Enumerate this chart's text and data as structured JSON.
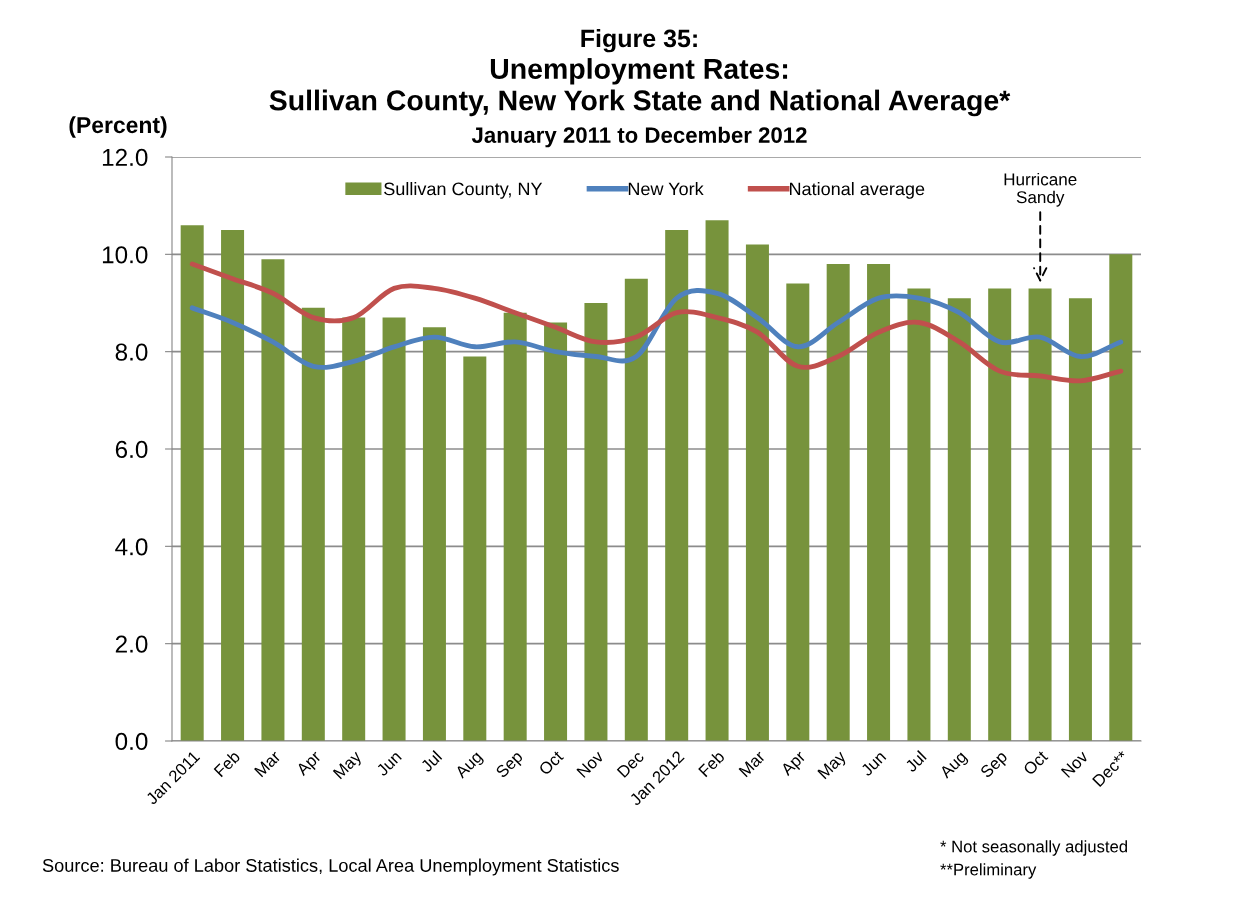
{
  "chart_data": {
    "type": "bar",
    "title": "Figure 35:\nUnemployment Rates:\nSullivan County, New York State and National Average*",
    "subtitle": "January 2011 to December 2012",
    "ylabel": "(Percent)",
    "categories": [
      "Jan 2011",
      "Feb",
      "Mar",
      "Apr",
      "May",
      "Jun",
      "Jul",
      "Aug",
      "Sep",
      "Oct",
      "Nov",
      "Dec",
      "Jan 2012",
      "Feb",
      "Mar",
      "Apr",
      "May",
      "Jun",
      "Jul",
      "Aug",
      "Sep",
      "Oct",
      "Nov",
      "Dec**"
    ],
    "series": [
      {
        "name": "Sullivan County, NY",
        "color": "#77933c",
        "values": [
          10.6,
          10.5,
          9.9,
          8.9,
          8.7,
          8.7,
          8.5,
          7.9,
          8.8,
          8.6,
          9.0,
          9.5,
          10.5,
          10.7,
          10.2,
          9.4,
          9.8,
          9.8,
          9.3,
          9.1,
          9.3,
          9.3,
          9.1,
          10.0
        ]
      },
      {
        "name": "New York",
        "type": "line",
        "color": "#4f81bd",
        "values": [
          8.9,
          8.6,
          8.2,
          7.7,
          7.8,
          8.1,
          8.3,
          8.1,
          8.2,
          8.0,
          7.9,
          7.9,
          9.1,
          9.2,
          8.7,
          8.1,
          8.6,
          9.1,
          9.1,
          8.8,
          8.2,
          8.3,
          7.9,
          8.2
        ]
      },
      {
        "name": "National average",
        "type": "line",
        "color": "#c0504d",
        "values": [
          9.8,
          9.5,
          9.2,
          8.7,
          8.7,
          9.3,
          9.3,
          9.1,
          8.8,
          8.5,
          8.2,
          8.3,
          8.8,
          8.7,
          8.4,
          7.7,
          7.9,
          8.4,
          8.6,
          8.2,
          7.6,
          7.5,
          7.4,
          7.6
        ]
      }
    ],
    "ylim": [
      0,
      12
    ],
    "yticks": [
      {
        "value": 0,
        "label": "0.0"
      },
      {
        "value": 2,
        "label": "2.0"
      },
      {
        "value": 4,
        "label": "4.0"
      },
      {
        "value": 6,
        "label": "6.0"
      },
      {
        "value": 8,
        "label": "8.0"
      },
      {
        "value": 10,
        "label": "10.0"
      },
      {
        "value": 12,
        "label": "12.0"
      }
    ],
    "grid": "y",
    "legend": "top",
    "line_style": "solid",
    "annotations": [
      "Hurricane\nSandy",
      "Source: Bureau of Labor Statistics, Local Area Unemployment Statistics",
      "* Not seasonally adjusted",
      "**Preliminary"
    ]
  }
}
